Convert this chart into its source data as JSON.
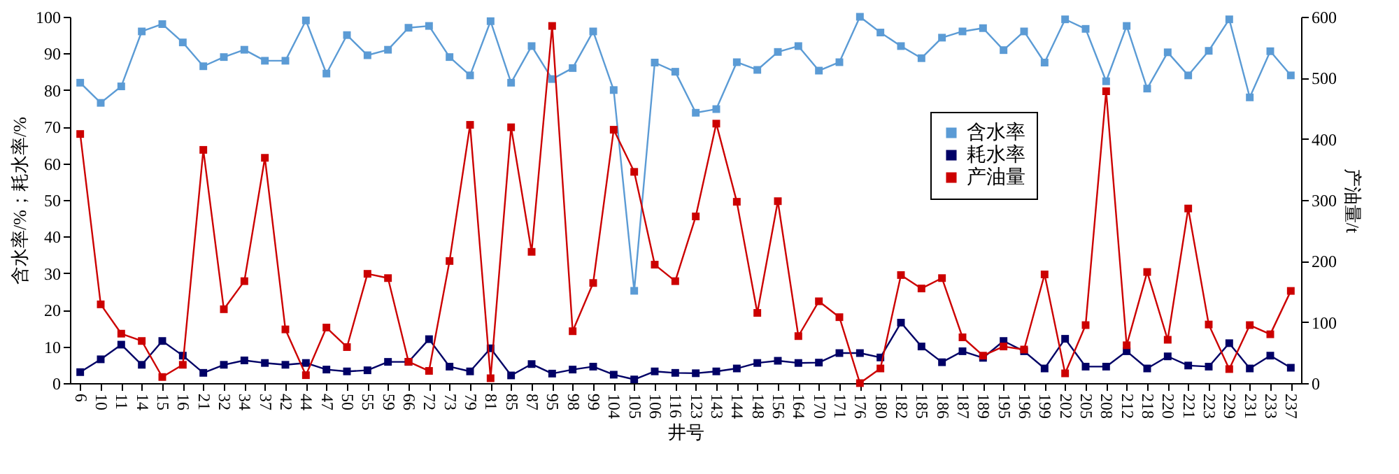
{
  "chart_data": {
    "type": "line",
    "xlabel": "井号",
    "ylabel": "含水率/%；耗水率/%",
    "y2label": "产油量/t",
    "categories": [
      "6",
      "10",
      "11",
      "14",
      "15",
      "16",
      "21",
      "32",
      "34",
      "37",
      "42",
      "44",
      "47",
      "50",
      "55",
      "59",
      "66",
      "72",
      "73",
      "79",
      "81",
      "85",
      "87",
      "95",
      "98",
      "99",
      "104",
      "105",
      "106",
      "116",
      "123",
      "143",
      "144",
      "148",
      "156",
      "164",
      "170",
      "171",
      "176",
      "180",
      "182",
      "185",
      "186",
      "187",
      "189",
      "195",
      "196",
      "199",
      "202",
      "205",
      "208",
      "212",
      "218",
      "220",
      "221",
      "223",
      "229",
      "231",
      "233",
      "237"
    ],
    "ylim": [
      0,
      100
    ],
    "yticks": [
      0,
      10,
      20,
      30,
      40,
      50,
      60,
      70,
      80,
      90,
      100
    ],
    "y2lim": [
      0,
      600
    ],
    "y2ticks": [
      0,
      100,
      200,
      300,
      400,
      500,
      600
    ],
    "grid": false,
    "legend": "right",
    "marker": "square",
    "line_style": "solid",
    "series": [
      {
        "name": "含水率",
        "color": "#5b9bd5",
        "values": [
          82,
          76.5,
          81,
          96,
          98,
          93,
          86.5,
          89,
          91,
          88,
          88,
          99,
          84.5,
          95,
          89.5,
          91,
          97,
          97.5,
          89,
          84,
          98.8,
          82,
          92,
          83,
          86,
          96,
          80,
          25.2,
          87.5,
          85,
          73.8,
          74.8,
          87.6,
          85.5,
          90.4,
          92,
          85.3,
          87.6,
          100,
          95.7,
          92,
          88.7,
          94.3,
          96,
          96.9,
          90.9,
          96,
          87.5,
          99.3,
          96.7,
          82.4,
          97.5,
          80.4,
          90.3,
          84,
          90.7,
          99.3,
          78,
          90.6,
          84
        ]
      },
      {
        "name": "耗水率",
        "color": "#000066",
        "values": [
          3,
          6.5,
          10.5,
          5,
          11.5,
          7.5,
          2.8,
          5,
          6.2,
          5.5,
          5,
          5.5,
          3.7,
          3.2,
          3.5,
          5.8,
          5.8,
          12,
          4.5,
          3.2,
          9.5,
          2.1,
          5.2,
          2.6,
          3.7,
          4.5,
          2.3,
          1,
          3.2,
          2.8,
          2.7,
          3.2,
          4,
          5.5,
          6.1,
          5.5,
          5.6,
          8.2,
          8.2,
          7,
          16.5,
          10,
          5.7,
          8.7,
          6.9,
          11.5,
          8.7,
          4,
          12.1,
          4.5,
          4.5,
          8.7,
          4,
          7.3,
          4.8,
          4.5,
          10.9,
          4,
          7.5,
          4.2
        ]
      },
      {
        "name": "产油量",
        "color": "#cc0000",
        "axis": "y2",
        "values": [
          408,
          129,
          81,
          69,
          10,
          30,
          382,
          121,
          167,
          369,
          88,
          13,
          91,
          59,
          179,
          172,
          35,
          20,
          200,
          423,
          8,
          419,
          215,
          585,
          85,
          164,
          415,
          346,
          194,
          167,
          273,
          425,
          297,
          115,
          298,
          77,
          134,
          108,
          0,
          24,
          177,
          155,
          172,
          75,
          45,
          60,
          55,
          178,
          16,
          95,
          478,
          62,
          182,
          71,
          286,
          96,
          23,
          95,
          80,
          151
        ]
      }
    ]
  }
}
